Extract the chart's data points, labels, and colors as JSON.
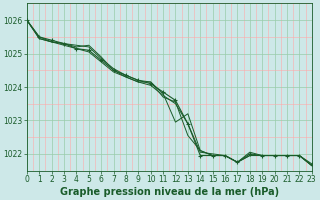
{
  "background_color": "#cde8e8",
  "plot_bg_color": "#cde8e8",
  "grid_major_color": "#99ccaa",
  "grid_minor_color": "#ffaaaa",
  "line_color": "#1a5c2a",
  "xlim": [
    0,
    23
  ],
  "ylim": [
    1021.5,
    1026.5
  ],
  "yticks": [
    1022,
    1023,
    1024,
    1025,
    1026
  ],
  "xticks": [
    0,
    1,
    2,
    3,
    4,
    5,
    6,
    7,
    8,
    9,
    10,
    11,
    12,
    13,
    14,
    15,
    16,
    17,
    18,
    19,
    20,
    21,
    22,
    23
  ],
  "series": [
    [
      1026.0,
      1025.5,
      1025.4,
      1025.3,
      1025.15,
      1025.1,
      1024.8,
      1024.5,
      1024.35,
      1024.2,
      1024.1,
      1023.85,
      1023.6,
      1022.9,
      1021.95,
      1021.95,
      1021.95,
      1021.75,
      1022.0,
      1021.95,
      1021.95,
      1021.95,
      1021.95,
      1021.7
    ],
    [
      1026.0,
      1025.5,
      1025.35,
      1025.25,
      1025.15,
      1025.05,
      1024.75,
      1024.45,
      1024.3,
      1024.15,
      1024.05,
      1023.75,
      1023.5,
      1022.9,
      1022.05,
      1022.0,
      1021.95,
      1021.75,
      1022.05,
      1021.95,
      1021.95,
      1021.95,
      1021.95,
      1021.65
    ],
    [
      1026.0,
      1025.45,
      1025.35,
      1025.3,
      1025.25,
      1025.2,
      1024.85,
      1024.55,
      1024.35,
      1024.2,
      1024.15,
      1023.8,
      1022.95,
      1023.2,
      1022.1,
      1021.95,
      1021.95,
      1021.75,
      1021.95,
      1021.95,
      1021.95,
      1021.95,
      1021.95,
      1021.65
    ],
    [
      1026.0,
      1025.45,
      1025.35,
      1025.3,
      1025.2,
      1025.25,
      1024.9,
      1024.5,
      1024.3,
      1024.15,
      1024.15,
      1023.7,
      1023.55,
      1022.55,
      1022.1,
      1021.95,
      1021.95,
      1021.75,
      1021.95,
      1021.95,
      1021.95,
      1021.95,
      1021.95,
      1021.65
    ]
  ],
  "xlabel": "Graphe pression niveau de la mer (hPa)",
  "tick_fontsize": 5.5,
  "label_fontsize": 7.0
}
